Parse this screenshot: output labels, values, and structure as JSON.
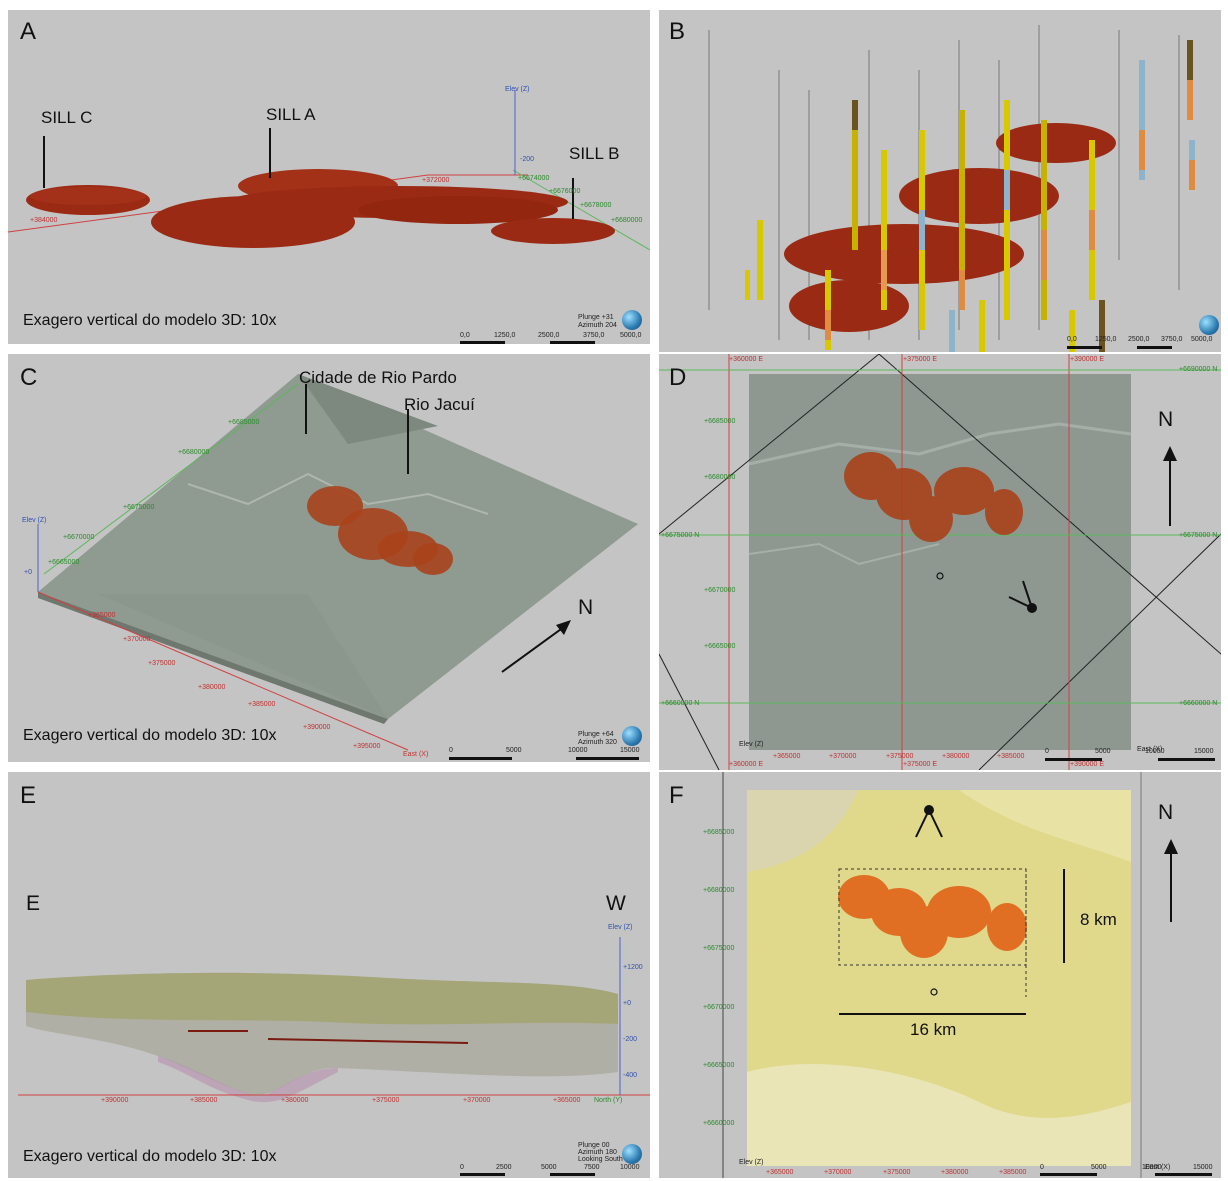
{
  "panels": {
    "a": {
      "tag": "A",
      "labels": {
        "sill_c": "SILL C",
        "sill_a": "SILL A",
        "sill_b": "SILL B"
      },
      "caption": "Exagero vertical do modelo 3D: 10x",
      "axes": {
        "elev": "Elev (Z)",
        "elev_tick": "-200",
        "x1": "+372000",
        "x2": "+384000",
        "y1": "+6674000",
        "y2": "+6676000",
        "y3": "+6678000",
        "y4": "+6680000"
      },
      "orientation": {
        "plunge": "Plunge +31",
        "azimuth": "Azimuth 204"
      },
      "scale": [
        "0,0",
        "1250,0",
        "2500,0",
        "3750,0",
        "5000,0"
      ]
    },
    "b": {
      "tag": "B",
      "scale": [
        "0,0",
        "1250,0",
        "2500,0",
        "3750,0",
        "5000,0"
      ]
    },
    "c": {
      "tag": "C",
      "labels": {
        "city": "Cidade de Rio Pardo",
        "river": "Rio Jacuí",
        "north": "N"
      },
      "caption": "Exagero vertical do modelo 3D: 10x",
      "axes": {
        "elev": "Elev (Z)",
        "elev_tick": "+0",
        "east": "East (X)",
        "x": [
          "+365000",
          "+370000",
          "+375000",
          "+380000",
          "+385000",
          "+390000",
          "+395000"
        ],
        "y": [
          "+6665000",
          "+6670000",
          "+6675000",
          "+6680000",
          "+6685000"
        ]
      },
      "orientation": {
        "plunge": "Plunge +64",
        "azimuth": "Azimuth 320"
      },
      "scale": [
        "0",
        "5000",
        "10000",
        "15000"
      ]
    },
    "d": {
      "tag": "D",
      "labels": {
        "north": "N"
      },
      "axes": {
        "top_x": [
          "+360000 E",
          "+375000 E",
          "+390000 E"
        ],
        "bottom_x": [
          "+360000 E",
          "+375000 E",
          "+390000 E"
        ],
        "left_y": [
          "+6685000",
          "+6680000",
          "+6675000 N",
          "+6670000",
          "+6665000",
          "+6660000 N"
        ],
        "right_y": [
          "+6690000 N",
          "+6675000 N",
          "+6660000 N"
        ],
        "ticks_x": [
          "+365000",
          "+370000",
          "+375000",
          "+380000",
          "+385000"
        ],
        "elev": "Elev (Z)",
        "east": "East (X)"
      },
      "scale": [
        "0",
        "5000",
        "10000",
        "15000"
      ]
    },
    "e": {
      "tag": "E",
      "labels": {
        "east": "E",
        "west": "W"
      },
      "caption": "Exagero vertical do modelo 3D: 10x",
      "axes": {
        "elev": "Elev (Z)",
        "z": [
          "+1200",
          "+0",
          "-200",
          "-400"
        ],
        "x": [
          "+390000",
          "+385000",
          "+380000",
          "+375000",
          "+370000",
          "+365000"
        ],
        "north": "North (Y)"
      },
      "orientation": {
        "plunge": "Plunge 00",
        "azimuth": "Azimuth 180",
        "looking": "Looking South"
      },
      "scale": [
        "0",
        "2500",
        "5000",
        "7500",
        "10000"
      ]
    },
    "f": {
      "tag": "F",
      "labels": {
        "north": "N",
        "dim_v": "8 km",
        "dim_h": "16 km"
      },
      "axes": {
        "y": [
          "+6685000",
          "+6680000",
          "+6675000",
          "+6670000",
          "+6665000",
          "+6660000"
        ],
        "x": [
          "+365000",
          "+370000",
          "+375000",
          "+380000",
          "+385000"
        ],
        "elev": "Elev (Z)",
        "east": "East (X)"
      },
      "scale": [
        "0",
        "5000",
        "10000",
        "15000"
      ]
    }
  },
  "colors": {
    "sill": "#9b2a14",
    "sill_light": "#c0541e",
    "panel_bg": "#c4c4c4",
    "terrain": "#8f9a90",
    "yellow_map": "#e0d88a"
  }
}
